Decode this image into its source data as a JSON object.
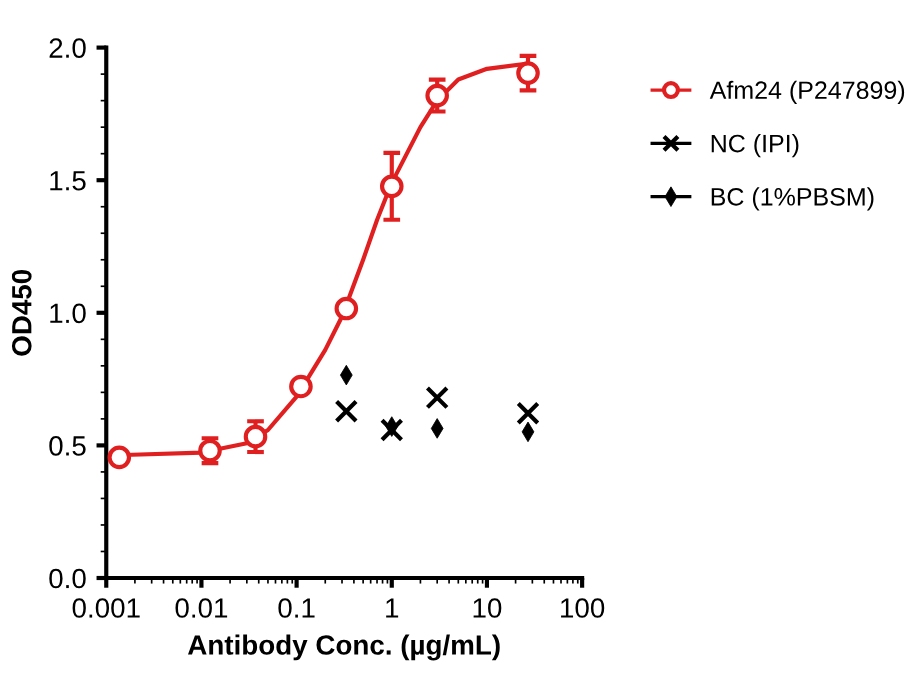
{
  "chart_data": {
    "type": "scatter",
    "xlabel": "Antibody Conc. (µg/mL)",
    "ylabel": "OD450",
    "log": "x",
    "xlim": [
      0.001,
      100
    ],
    "xticks": [
      0.001,
      0.01,
      0.1,
      1,
      10,
      100
    ],
    "ylim": [
      0,
      2.0
    ],
    "yticks": [
      {
        "value": 0,
        "label": "0.0"
      },
      0.5,
      {
        "value": 1,
        "label": "1.0"
      },
      1.5,
      {
        "value": 2,
        "label": "2.0"
      }
    ],
    "grid": false,
    "legend": "right",
    "series": [
      {
        "type": "line",
        "color": "#e02020",
        "marker": "none",
        "line_style": "solid",
        "x": [
          0.0013,
          0.01,
          0.03,
          0.05,
          0.1,
          0.2,
          0.3,
          0.5,
          0.7,
          1,
          2,
          3,
          5,
          10,
          27
        ],
        "values": [
          0.463,
          0.473,
          0.508,
          0.558,
          0.684,
          0.86,
          0.986,
          1.2,
          1.35,
          1.49,
          1.7,
          1.8,
          1.88,
          1.92,
          1.94
        ]
      },
      {
        "name": "Afm24 (P247899)",
        "color": "#e02020",
        "marker": "circle",
        "x": [
          0.00137,
          0.0123,
          0.037,
          0.111,
          0.333,
          1,
          3,
          27
        ],
        "values": [
          0.455,
          0.48,
          0.533,
          0.722,
          1.016,
          1.477,
          1.819,
          1.904
        ],
        "errors": [
          null,
          0.047,
          0.058,
          null,
          0.02,
          0.126,
          0.06,
          0.065
        ]
      },
      {
        "name": "NC (IPI)",
        "color": "#000000",
        "marker": "cross",
        "x": [
          0.333,
          1,
          3,
          27
        ],
        "values": [
          0.629,
          0.558,
          0.68,
          0.621
        ]
      },
      {
        "name": "BC (1%PBSM)",
        "color": "#000000",
        "marker": "diamond",
        "x": [
          0.333,
          1,
          3,
          27
        ],
        "values": [
          0.765,
          0.571,
          0.564,
          0.551
        ]
      }
    ]
  }
}
